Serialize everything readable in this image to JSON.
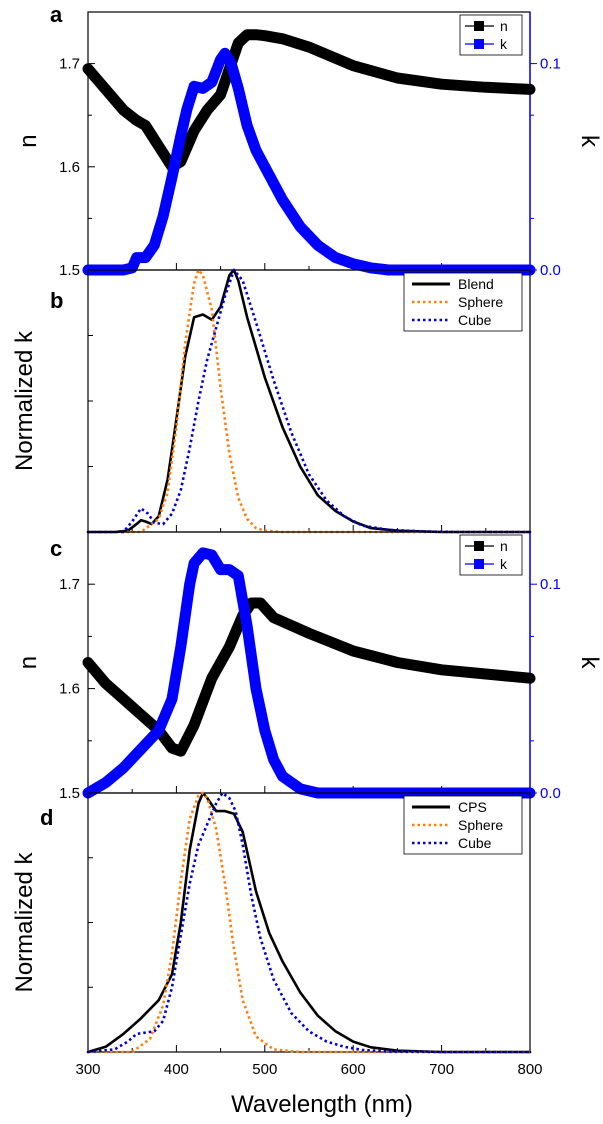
{
  "chart_data": [
    {
      "panel": "a",
      "type": "line",
      "xlim": [
        300,
        800
      ],
      "ylim_left": [
        1.5,
        1.75
      ],
      "ylim_right": [
        0.0,
        0.125
      ],
      "ylabel_left": "n",
      "ylabel_right": "k",
      "left_ticks": [
        "1.5",
        "1.6",
        "1.7"
      ],
      "right_ticks": [
        "0.0",
        "0.1"
      ],
      "colors": {
        "n": "#000000",
        "k": "#0000ff"
      },
      "legend": {
        "position": "top-right",
        "entries": [
          "n",
          "k"
        ]
      },
      "series": [
        {
          "name": "n",
          "axis": "left",
          "x": [
            300,
            320,
            340,
            355,
            365,
            380,
            395,
            405,
            420,
            435,
            450,
            460,
            470,
            480,
            490,
            500,
            520,
            550,
            600,
            650,
            700,
            750,
            800
          ],
          "y": [
            1.695,
            1.675,
            1.655,
            1.645,
            1.64,
            1.62,
            1.6,
            1.605,
            1.635,
            1.655,
            1.67,
            1.695,
            1.72,
            1.728,
            1.728,
            1.727,
            1.724,
            1.716,
            1.698,
            1.686,
            1.68,
            1.677,
            1.675
          ]
        },
        {
          "name": "k",
          "axis": "right",
          "x": [
            300,
            340,
            350,
            355,
            365,
            375,
            385,
            395,
            405,
            412,
            420,
            430,
            440,
            450,
            455,
            462,
            470,
            480,
            490,
            500,
            520,
            540,
            560,
            580,
            600,
            620,
            640,
            660,
            700,
            750,
            800
          ],
          "y": [
            0.0,
            0.0,
            0.001,
            0.006,
            0.006,
            0.012,
            0.026,
            0.045,
            0.065,
            0.078,
            0.089,
            0.088,
            0.091,
            0.102,
            0.105,
            0.1,
            0.088,
            0.07,
            0.058,
            0.05,
            0.034,
            0.021,
            0.012,
            0.006,
            0.003,
            0.001,
            0.0,
            0.0,
            0.0,
            0.0,
            0.0
          ]
        }
      ]
    },
    {
      "panel": "b",
      "type": "line",
      "xlim": [
        300,
        800
      ],
      "ylim": [
        0,
        1.0
      ],
      "ylabel": "Normalized k",
      "colors": {
        "Blend": "#000000",
        "Sphere": "#ff7f0e",
        "Cube": "#0000cc"
      },
      "legend": {
        "position": "top-right",
        "entries": [
          "Blend",
          "Sphere",
          "Cube"
        ]
      },
      "series": [
        {
          "name": "Blend",
          "x": [
            300,
            330,
            345,
            355,
            360,
            365,
            372,
            380,
            390,
            400,
            410,
            420,
            430,
            440,
            450,
            460,
            465,
            470,
            480,
            500,
            520,
            540,
            560,
            580,
            600,
            620,
            650,
            700,
            800
          ],
          "y": [
            0.0,
            0.0,
            0.005,
            0.03,
            0.045,
            0.04,
            0.03,
            0.06,
            0.2,
            0.43,
            0.67,
            0.82,
            0.83,
            0.81,
            0.86,
            0.98,
            1.0,
            0.96,
            0.82,
            0.59,
            0.4,
            0.25,
            0.14,
            0.08,
            0.04,
            0.015,
            0.005,
            0.0,
            0.0
          ]
        },
        {
          "name": "Sphere",
          "x": [
            300,
            360,
            380,
            390,
            400,
            410,
            420,
            425,
            430,
            440,
            450,
            460,
            470,
            480,
            490,
            500,
            520,
            800
          ],
          "y": [
            0.0,
            0.0,
            0.05,
            0.15,
            0.4,
            0.72,
            0.95,
            1.0,
            0.98,
            0.85,
            0.55,
            0.3,
            0.13,
            0.05,
            0.015,
            0.005,
            0.0,
            0.0
          ]
        },
        {
          "name": "Cube",
          "x": [
            300,
            340,
            350,
            360,
            368,
            375,
            385,
            395,
            405,
            415,
            425,
            435,
            445,
            455,
            465,
            475,
            490,
            510,
            530,
            550,
            570,
            590,
            610,
            640,
            680,
            720,
            800
          ],
          "y": [
            0.0,
            0.0,
            0.04,
            0.09,
            0.07,
            0.035,
            0.03,
            0.07,
            0.16,
            0.32,
            0.5,
            0.66,
            0.78,
            0.9,
            1.0,
            0.96,
            0.8,
            0.58,
            0.38,
            0.22,
            0.12,
            0.06,
            0.025,
            0.008,
            0.002,
            0.0,
            0.0
          ]
        }
      ]
    },
    {
      "panel": "c",
      "type": "line",
      "xlim": [
        300,
        800
      ],
      "ylim_left": [
        1.5,
        1.75
      ],
      "ylim_right": [
        0.0,
        0.125
      ],
      "ylabel_left": "n",
      "ylabel_right": "k",
      "left_ticks": [
        "1.5",
        "1.6",
        "1.7"
      ],
      "right_ticks": [
        "0.0",
        "0.1"
      ],
      "colors": {
        "n": "#000000",
        "k": "#0000ff"
      },
      "legend": {
        "position": "top-right",
        "entries": [
          "n",
          "k"
        ]
      },
      "series": [
        {
          "name": "n",
          "axis": "left",
          "x": [
            300,
            320,
            340,
            360,
            380,
            395,
            405,
            420,
            440,
            460,
            475,
            485,
            495,
            510,
            550,
            600,
            650,
            700,
            750,
            800
          ],
          "y": [
            1.625,
            1.605,
            1.59,
            1.575,
            1.56,
            1.543,
            1.54,
            1.565,
            1.61,
            1.64,
            1.67,
            1.682,
            1.682,
            1.668,
            1.653,
            1.636,
            1.625,
            1.618,
            1.614,
            1.61
          ]
        },
        {
          "name": "k",
          "axis": "right",
          "x": [
            300,
            320,
            340,
            360,
            380,
            395,
            405,
            415,
            420,
            430,
            440,
            450,
            460,
            470,
            480,
            490,
            500,
            510,
            520,
            540,
            560,
            580,
            600,
            620,
            650,
            700,
            800
          ],
          "y": [
            0.0,
            0.005,
            0.012,
            0.021,
            0.03,
            0.045,
            0.07,
            0.1,
            0.11,
            0.115,
            0.114,
            0.107,
            0.107,
            0.104,
            0.08,
            0.05,
            0.03,
            0.016,
            0.008,
            0.002,
            0.0,
            0.0,
            0.0,
            0.0,
            0.0,
            0.0,
            0.0
          ]
        }
      ]
    },
    {
      "panel": "d",
      "type": "line",
      "xlim": [
        300,
        800
      ],
      "ylim": [
        0,
        1.0
      ],
      "ylabel": "Normalized k",
      "xlabel": "Wavelength (nm)",
      "x_ticks": [
        "300",
        "400",
        "500",
        "600",
        "700",
        "800"
      ],
      "colors": {
        "CPS": "#000000",
        "Sphere": "#ff7f0e",
        "Cube": "#0000cc"
      },
      "legend": {
        "position": "top-right",
        "entries": [
          "CPS",
          "Sphere",
          "Cube"
        ]
      },
      "series": [
        {
          "name": "CPS",
          "x": [
            300,
            320,
            340,
            360,
            380,
            395,
            405,
            415,
            425,
            430,
            435,
            445,
            455,
            465,
            475,
            490,
            505,
            520,
            540,
            560,
            580,
            600,
            620,
            650,
            700,
            800
          ],
          "y": [
            0.0,
            0.02,
            0.07,
            0.13,
            0.2,
            0.3,
            0.5,
            0.78,
            0.96,
            1.0,
            0.98,
            0.93,
            0.93,
            0.92,
            0.85,
            0.62,
            0.46,
            0.35,
            0.23,
            0.14,
            0.08,
            0.04,
            0.018,
            0.005,
            0.0,
            0.0
          ]
        },
        {
          "name": "Sphere",
          "x": [
            300,
            350,
            370,
            385,
            395,
            405,
            415,
            425,
            430,
            435,
            445,
            455,
            465,
            475,
            490,
            510,
            540,
            800
          ],
          "y": [
            0.0,
            0.0,
            0.05,
            0.18,
            0.38,
            0.66,
            0.9,
            0.99,
            1.0,
            0.98,
            0.86,
            0.65,
            0.4,
            0.2,
            0.06,
            0.01,
            0.0,
            0.0
          ]
        },
        {
          "name": "Cube",
          "x": [
            300,
            330,
            345,
            355,
            365,
            375,
            385,
            395,
            405,
            415,
            425,
            435,
            445,
            452,
            460,
            467,
            475,
            485,
            495,
            510,
            530,
            550,
            570,
            590,
            610,
            640,
            700,
            800
          ],
          "y": [
            0.0,
            0.01,
            0.04,
            0.07,
            0.075,
            0.08,
            0.12,
            0.25,
            0.45,
            0.65,
            0.8,
            0.88,
            0.96,
            1.0,
            0.98,
            0.93,
            0.8,
            0.6,
            0.44,
            0.28,
            0.15,
            0.08,
            0.04,
            0.02,
            0.008,
            0.002,
            0.0,
            0.0
          ]
        }
      ]
    }
  ]
}
